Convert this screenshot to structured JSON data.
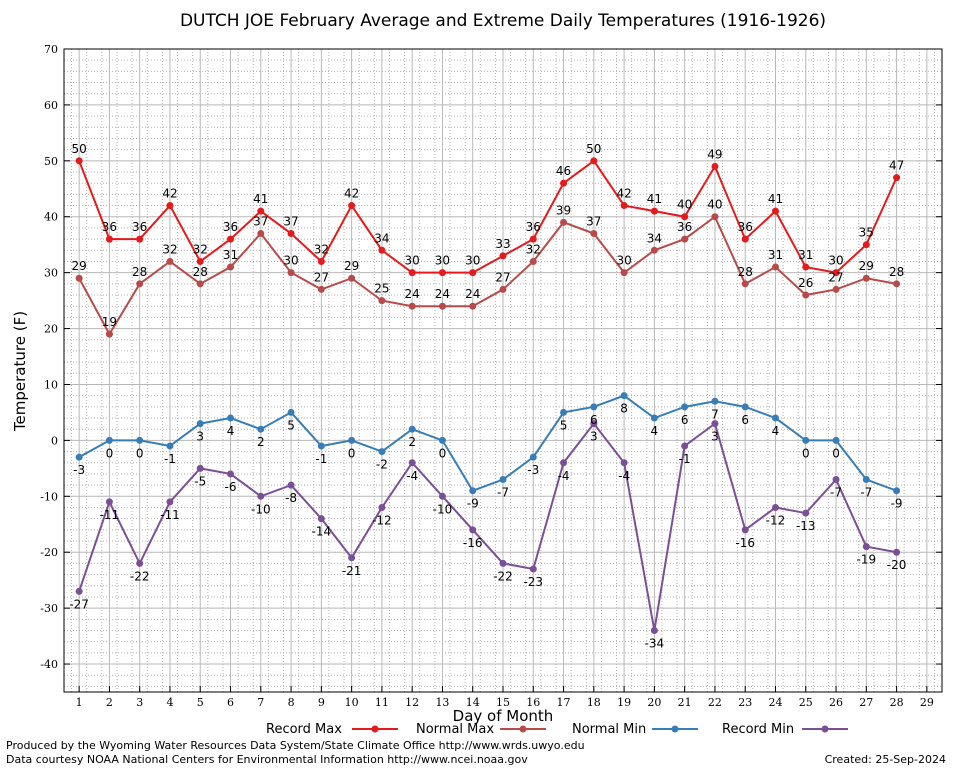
{
  "chart_data": {
    "type": "line",
    "title": "DUTCH JOE February Average and Extreme Daily Temperatures (1916-1926)",
    "xlabel": "Day of Month",
    "ylabel": "Temperature (F)",
    "xlim": [
      1,
      29
    ],
    "ylim": [
      -45,
      70
    ],
    "x": [
      1,
      2,
      3,
      4,
      5,
      6,
      7,
      8,
      9,
      10,
      11,
      12,
      13,
      14,
      15,
      16,
      17,
      18,
      19,
      20,
      21,
      22,
      23,
      24,
      25,
      26,
      27,
      28
    ],
    "x_tick_labels": [
      "1",
      "2",
      "3",
      "4",
      "5",
      "6",
      "7",
      "8",
      "9",
      "10",
      "11",
      "12",
      "13",
      "14",
      "15",
      "16",
      "17",
      "18",
      "19",
      "20",
      "21",
      "22",
      "23",
      "24",
      "25",
      "26",
      "27",
      "28",
      "29"
    ],
    "y_tick_labels": [
      "70",
      "60",
      "50",
      "40",
      "30",
      "20",
      "10",
      "0",
      "-10",
      "-20",
      "-30",
      "-40"
    ],
    "grid": true,
    "legend_position": "bottom",
    "series": [
      {
        "name": "Record Max",
        "color": "#e41a1c",
        "label_position": "above",
        "values": [
          50,
          36,
          36,
          42,
          32,
          36,
          41,
          37,
          32,
          42,
          34,
          30,
          30,
          30,
          33,
          36,
          46,
          50,
          42,
          41,
          40,
          49,
          36,
          41,
          31,
          30,
          35,
          47
        ]
      },
      {
        "name": "Normal Max",
        "color": "#b84a4a",
        "label_position": "above",
        "values": [
          29,
          19,
          28,
          32,
          28,
          31,
          37,
          30,
          27,
          29,
          25,
          24,
          24,
          24,
          27,
          32,
          39,
          37,
          30,
          34,
          36,
          40,
          28,
          31,
          26,
          27,
          29,
          28
        ]
      },
      {
        "name": "Normal Min",
        "color": "#377eb8",
        "label_position": "below",
        "values": [
          -3,
          0,
          0,
          -1,
          3,
          4,
          2,
          5,
          -1,
          0,
          -2,
          2,
          0,
          -9,
          -7,
          -3,
          5,
          6,
          8,
          4,
          6,
          7,
          6,
          4,
          0,
          0,
          -7,
          -9
        ]
      },
      {
        "name": "Record Min",
        "color": "#7b4f96",
        "label_position": "below",
        "values": [
          -27,
          -11,
          -22,
          -11,
          -5,
          -6,
          -10,
          -8,
          -14,
          -21,
          -12,
          -4,
          -10,
          -16,
          -22,
          -23,
          -4,
          3,
          -4,
          -34,
          -1,
          3,
          -16,
          -12,
          -13,
          -7,
          -19,
          -20
        ]
      }
    ]
  },
  "footer": {
    "line1": "Produced by the Wyoming Water Resources Data System/State Climate Office http://www.wrds.uwyo.edu",
    "line2": "Data courtesy NOAA National Centers for Environmental Information http://www.ncei.noaa.gov",
    "created": "Created: 25-Sep-2024"
  }
}
